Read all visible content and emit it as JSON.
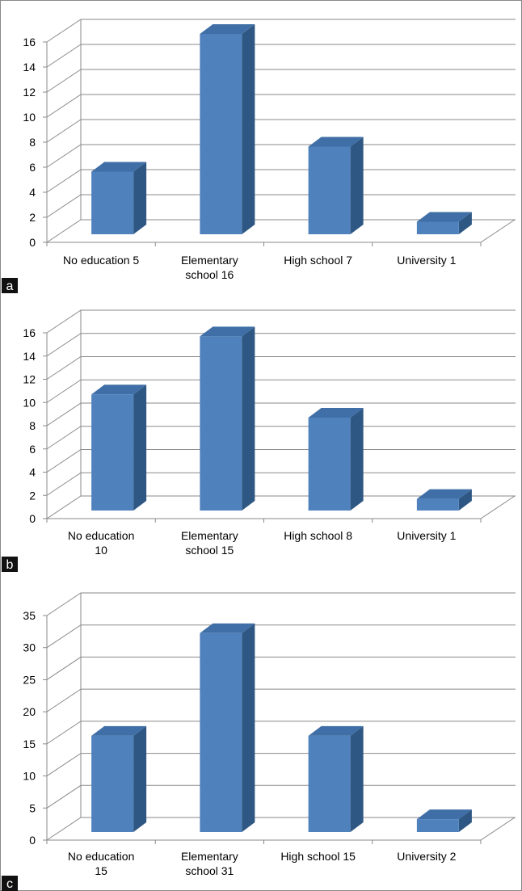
{
  "chart_data": [
    {
      "type": "bar3d",
      "label": "a",
      "categories": [
        "No education  5",
        "Elementary\nschool  16",
        "High school  7",
        "University  1"
      ],
      "values": [
        5,
        16,
        7,
        1
      ],
      "color": "#4f81bd",
      "ylim": [
        0,
        16
      ],
      "yticks": [
        0,
        2,
        4,
        6,
        8,
        10,
        12,
        14,
        16
      ],
      "grid": true
    },
    {
      "type": "bar3d",
      "label": "b",
      "categories": [
        "No education\n10",
        "Elementary\nschool 15",
        "High school 8",
        "University  1"
      ],
      "values": [
        10,
        15,
        8,
        1
      ],
      "color": "#4f81bd",
      "ylim": [
        0,
        16
      ],
      "yticks": [
        0,
        2,
        4,
        6,
        8,
        10,
        12,
        14,
        16
      ],
      "grid": true
    },
    {
      "type": "bar3d",
      "label": "c",
      "categories": [
        "No education\n15",
        "Elementary\nschool 31",
        "High school 15",
        "University 2"
      ],
      "values": [
        15,
        31,
        15,
        2
      ],
      "color": "#4f81bd",
      "ylim": [
        0,
        35
      ],
      "yticks": [
        0,
        5,
        10,
        15,
        20,
        25,
        30,
        35
      ],
      "grid": true
    }
  ]
}
